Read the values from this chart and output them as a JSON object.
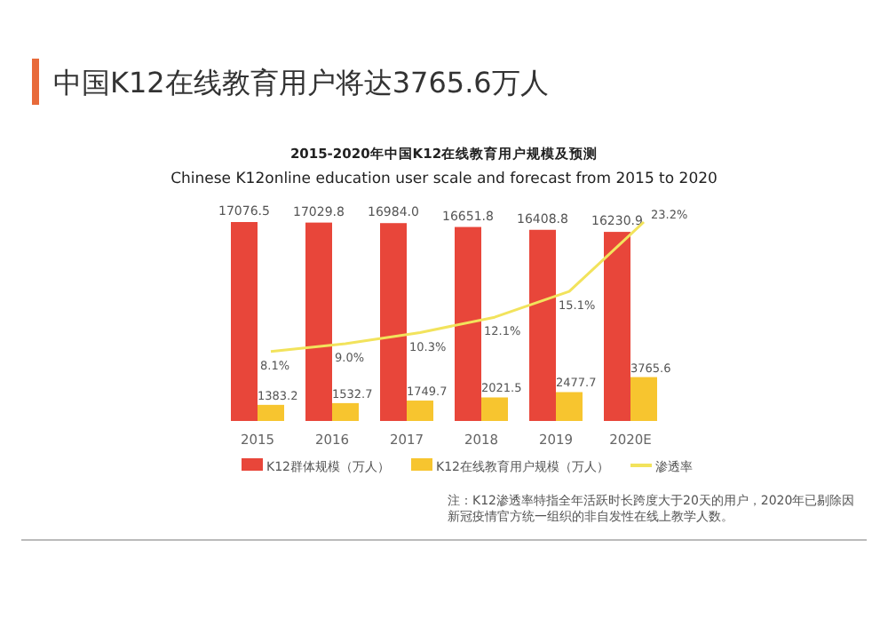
{
  "chart_data": {
    "type": "bar",
    "title": "中国K12在线教育用户将达3765.6万人",
    "subtitle": "2015-2020年中国K12在线教育用户规模及预测\nChinese K12online education user scale and forecast from 2015 to 2020",
    "categories": [
      "2015",
      "2016",
      "2017",
      "2018",
      "2019",
      "2020E"
    ],
    "series": [
      {
        "name": "K12群体规模（万人）",
        "color": "#e8463a",
        "values": [
          17076.5,
          17029.8,
          16984.0,
          16651.8,
          16408.8,
          16230.9
        ],
        "value_labels": [
          "17076.5",
          "17029.8",
          "16984.0",
          "16651.8",
          "16408.8",
          "16230.9"
        ]
      },
      {
        "name": "K12在线教育用户规模（万人）",
        "color": "#f7c52f",
        "values": [
          1383.2,
          1532.7,
          1749.7,
          2021.5,
          2477.7,
          3765.6
        ],
        "value_labels": [
          "1383.2",
          "1532.7",
          "1749.7",
          "2021.5",
          "2477.7",
          "3765.6"
        ]
      },
      {
        "name": "渗透率",
        "type": "line",
        "axis": "y2",
        "color": "#f2e35c",
        "values": [
          8.1,
          9.0,
          10.3,
          12.1,
          15.1,
          23.2
        ],
        "value_labels": [
          "8.1%",
          "9.0%",
          "10.3%",
          "12.1%",
          "15.1%",
          "23.2%"
        ]
      }
    ],
    "data_labels": true,
    "legend": "bottom",
    "marker": "none",
    "annotations": [
      "注：K12渗透率特指全年活跃时长跨度大于20天的用户，2020年已剔除因新冠疫情官方统一组织的非自发性在线上教学人数。"
    ]
  }
}
